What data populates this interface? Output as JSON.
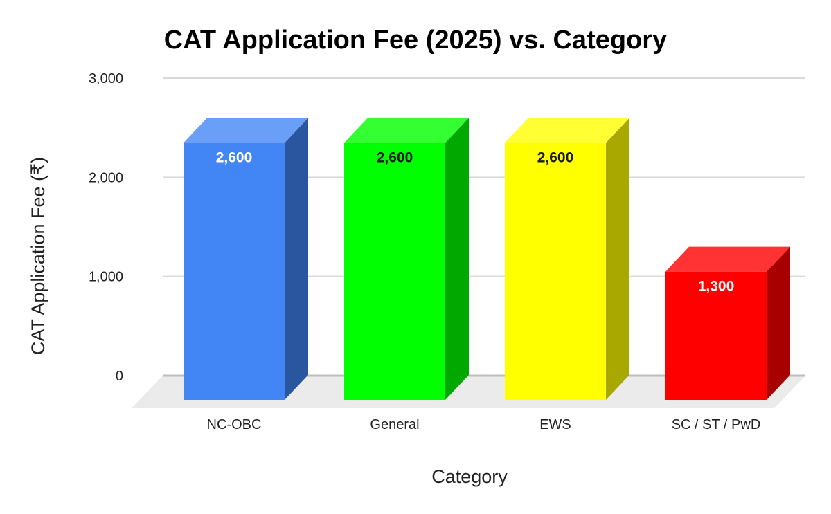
{
  "chart_data": {
    "type": "bar",
    "title": "CAT Application Fee (2025) vs. Category",
    "xlabel": "Category",
    "ylabel": "CAT Application Fee (₹)",
    "categories": [
      "NC-OBC",
      "General",
      "EWS",
      "SC / ST / PwD"
    ],
    "values": [
      2600,
      2600,
      2600,
      1300
    ],
    "value_labels": [
      "2,600",
      "2,600",
      "2,600",
      "1,300"
    ],
    "ylim": [
      0,
      3000
    ],
    "yticks": [
      0,
      1000,
      2000,
      3000
    ],
    "ytick_labels": [
      "0",
      "1,000",
      "2,000",
      "3,000"
    ],
    "grid": true,
    "legend": "none",
    "style": "3d",
    "colors": [
      {
        "front": "#4285f4",
        "side": "#2a56a0",
        "top": "#6a9ff7",
        "label": "#ffffff"
      },
      {
        "front": "#00ff00",
        "side": "#00a800",
        "top": "#33ff33",
        "label": "#1a1a1a"
      },
      {
        "front": "#ffff00",
        "side": "#a8a800",
        "top": "#ffff33",
        "label": "#1a1a1a"
      },
      {
        "front": "#ff0000",
        "side": "#a80000",
        "top": "#ff3333",
        "label": "#ffffff"
      }
    ]
  }
}
